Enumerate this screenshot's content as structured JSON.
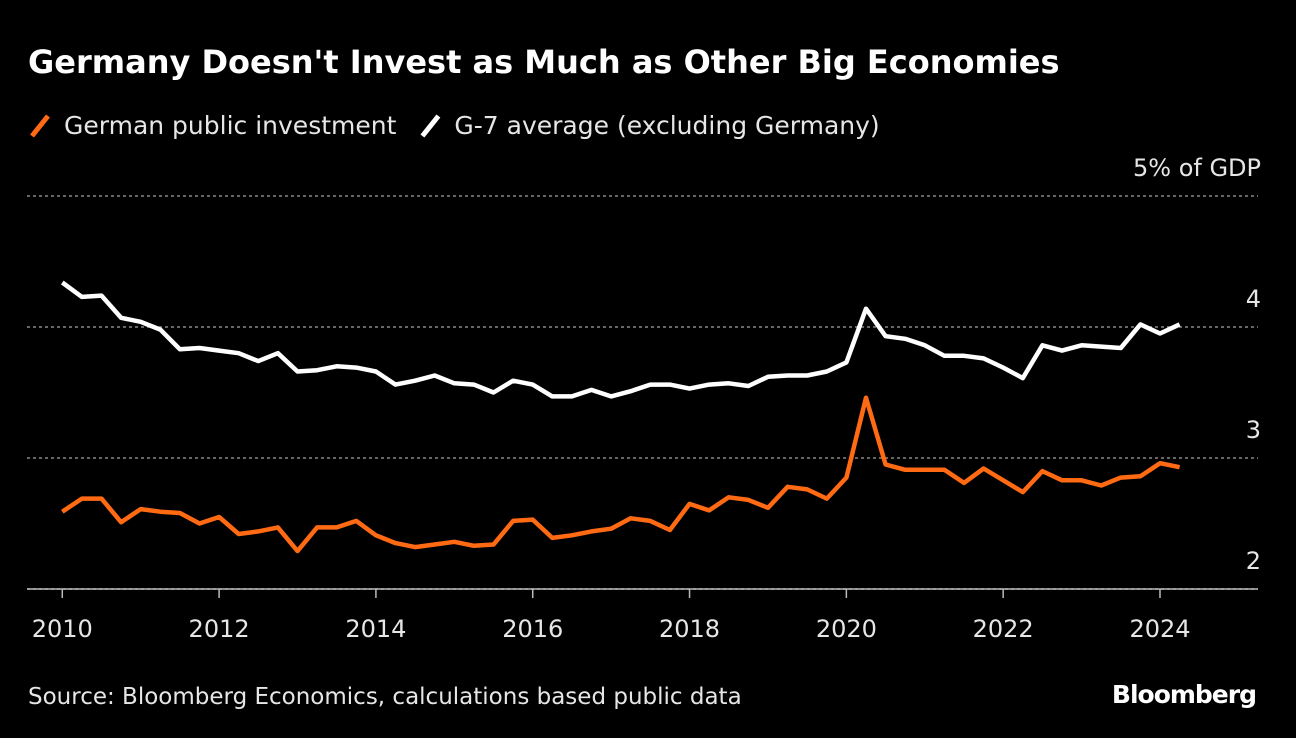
{
  "chart_data": {
    "type": "line",
    "title": "Germany Doesn't Invest as Much as Other Big Economies",
    "source": "Source: Bloomberg Economics, calculations based public data",
    "brand": "Bloomberg",
    "x": [
      2010,
      2010.25,
      2010.5,
      2010.75,
      2011,
      2011.25,
      2011.5,
      2011.75,
      2012,
      2012.25,
      2012.5,
      2012.75,
      2013,
      2013.25,
      2013.5,
      2013.75,
      2014,
      2014.25,
      2014.5,
      2014.75,
      2015,
      2015.25,
      2015.5,
      2015.75,
      2016,
      2016.25,
      2016.5,
      2016.75,
      2017,
      2017.25,
      2017.5,
      2017.75,
      2018,
      2018.25,
      2018.5,
      2018.75,
      2019,
      2019.25,
      2019.5,
      2019.75,
      2020,
      2020.25,
      2020.5,
      2020.75,
      2021,
      2021.25,
      2021.5,
      2021.75,
      2022,
      2022.25,
      2022.5,
      2022.75,
      2023,
      2023.25,
      2023.5,
      2023.75,
      2024,
      2024.25
    ],
    "series": [
      {
        "name": "German public investment",
        "color": "#ff6a13",
        "values": [
          2.59,
          2.69,
          2.69,
          2.51,
          2.61,
          2.59,
          2.58,
          2.5,
          2.55,
          2.42,
          2.44,
          2.47,
          2.29,
          2.47,
          2.47,
          2.52,
          2.41,
          2.35,
          2.32,
          2.34,
          2.36,
          2.33,
          2.34,
          2.52,
          2.53,
          2.39,
          2.41,
          2.44,
          2.46,
          2.54,
          2.52,
          2.45,
          2.65,
          2.6,
          2.7,
          2.68,
          2.62,
          2.78,
          2.76,
          2.69,
          2.85,
          3.46,
          2.95,
          2.91,
          2.91,
          2.91,
          2.81,
          2.92,
          2.83,
          2.74,
          2.9,
          2.83,
          2.83,
          2.79,
          2.85,
          2.86,
          2.96,
          2.93
        ]
      },
      {
        "name": "G-7 average (excluding Germany)",
        "color": "#ffffff",
        "values": [
          4.34,
          4.23,
          4.24,
          4.07,
          4.04,
          3.98,
          3.83,
          3.84,
          3.82,
          3.8,
          3.74,
          3.8,
          3.66,
          3.67,
          3.7,
          3.69,
          3.66,
          3.56,
          3.59,
          3.63,
          3.57,
          3.56,
          3.5,
          3.59,
          3.56,
          3.47,
          3.47,
          3.52,
          3.47,
          3.51,
          3.56,
          3.56,
          3.53,
          3.56,
          3.57,
          3.55,
          3.62,
          3.63,
          3.63,
          3.66,
          3.73,
          4.14,
          3.93,
          3.91,
          3.86,
          3.78,
          3.78,
          3.76,
          3.69,
          3.61,
          3.86,
          3.82,
          3.86,
          3.85,
          3.84,
          4.02,
          3.95,
          4.02
        ]
      }
    ],
    "xlim": [
      2009.55,
      2025.25
    ],
    "xticks": [
      2010,
      2012,
      2014,
      2016,
      2018,
      2020,
      2022,
      2024
    ],
    "ylim": [
      2,
      5
    ],
    "yticks": [
      2,
      3,
      4,
      {
        "value": 5,
        "label": "5% of GDP"
      }
    ],
    "grid": true
  }
}
